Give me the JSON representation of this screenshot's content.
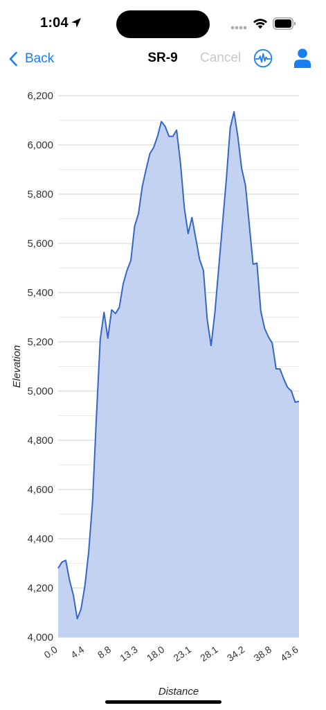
{
  "status_bar": {
    "time": "1:04",
    "icons": [
      "location-arrow-icon",
      "cellular-dots-icon",
      "wifi-icon",
      "battery-icon"
    ]
  },
  "nav": {
    "back_label": "Back",
    "title": "SR-9",
    "cancel_label": "Cancel",
    "icons": [
      "chevron-left-icon",
      "pulse-icon",
      "person-icon"
    ],
    "accent_color": "#1a7ef0",
    "disabled_color": "#c7c7cc"
  },
  "chart_data": {
    "type": "area",
    "xlabel": "Distance",
    "ylabel": "Elevation",
    "ylim": [
      4000,
      6200
    ],
    "yticks": [
      "6,200",
      "6,000",
      "5,800",
      "5,600",
      "5,400",
      "5,200",
      "5,000",
      "4,800",
      "4,600",
      "4,400",
      "4,200",
      "4,000"
    ],
    "xticks": [
      "0.0",
      "4.4",
      "8.8",
      "13.3",
      "18.0",
      "23.1",
      "28.1",
      "34.2",
      "38.8",
      "43.6"
    ],
    "fill_color": "#c3d2f0",
    "line_color": "#3465c9",
    "grid": true,
    "series": [
      {
        "values": [
          4280,
          4305,
          4312,
          4230,
          4170,
          4075,
          4115,
          4210,
          4350,
          4550,
          4890,
          5210,
          5320,
          5215,
          5330,
          5315,
          5340,
          5435,
          5490,
          5530,
          5670,
          5720,
          5830,
          5900,
          5965,
          5990,
          6035,
          6095,
          6075,
          6035,
          6035,
          6060,
          5925,
          5745,
          5640,
          5705,
          5620,
          5535,
          5490,
          5290,
          5185,
          5320,
          5500,
          5680,
          5860,
          6070,
          6135,
          6035,
          5905,
          5835,
          5675,
          5515,
          5520,
          5325,
          5255,
          5220,
          5195,
          5090,
          5090,
          5050,
          5015,
          5000,
          4955,
          4958
        ]
      }
    ]
  }
}
